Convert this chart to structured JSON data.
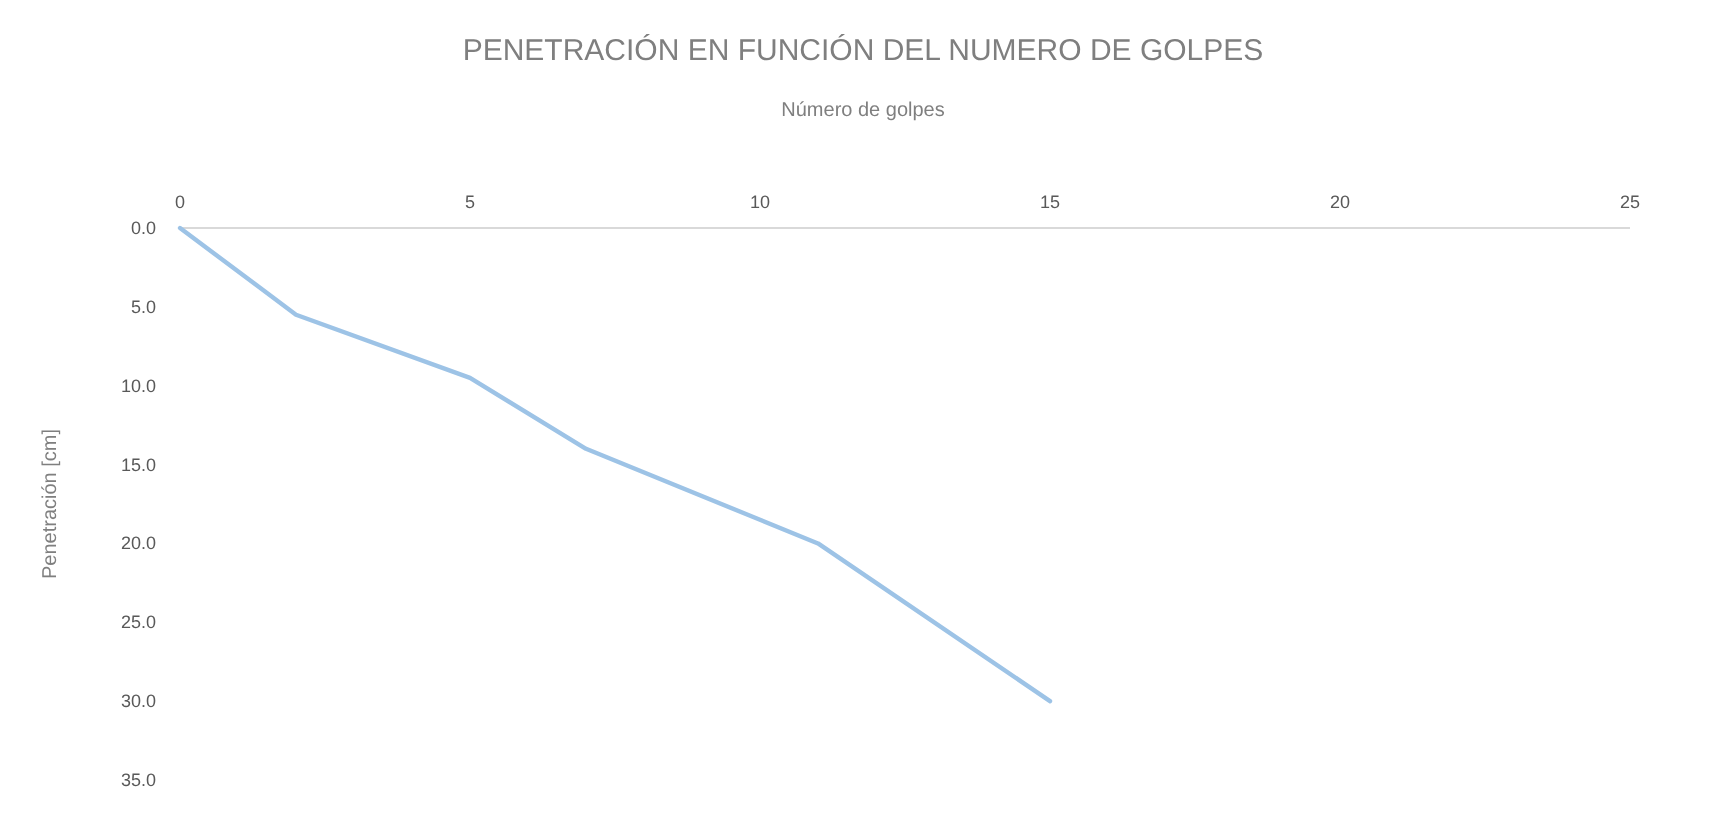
{
  "chart_data": {
    "type": "line",
    "title": "PENETRACIÓN EN FUNCIÓN DEL NUMERO DE GOLPES",
    "xlabel": "Número de golpes",
    "ylabel": "Penetración [cm]",
    "x": [
      0,
      2,
      5,
      7,
      10,
      11,
      15
    ],
    "series": [
      {
        "color": "#9dc3e6",
        "values": [
          0,
          5.5,
          9.5,
          14,
          18.5,
          20,
          30
        ]
      }
    ],
    "xlim": [
      0,
      25
    ],
    "xticks": [
      0,
      5,
      10,
      15,
      20,
      25
    ],
    "ylim": [
      35,
      0
    ],
    "yticks": [
      {
        "value": 0,
        "label": "0.0"
      },
      {
        "value": 5,
        "label": "5.0"
      },
      {
        "value": 10,
        "label": "10.0"
      },
      {
        "value": 15,
        "label": "15.0"
      },
      {
        "value": 20,
        "label": "20.0"
      },
      {
        "value": 25,
        "label": "25.0"
      },
      {
        "value": 30,
        "label": "30.0"
      },
      {
        "value": 35,
        "label": "35.0"
      }
    ],
    "grid": false,
    "marker": "none",
    "line_style": "solid"
  }
}
